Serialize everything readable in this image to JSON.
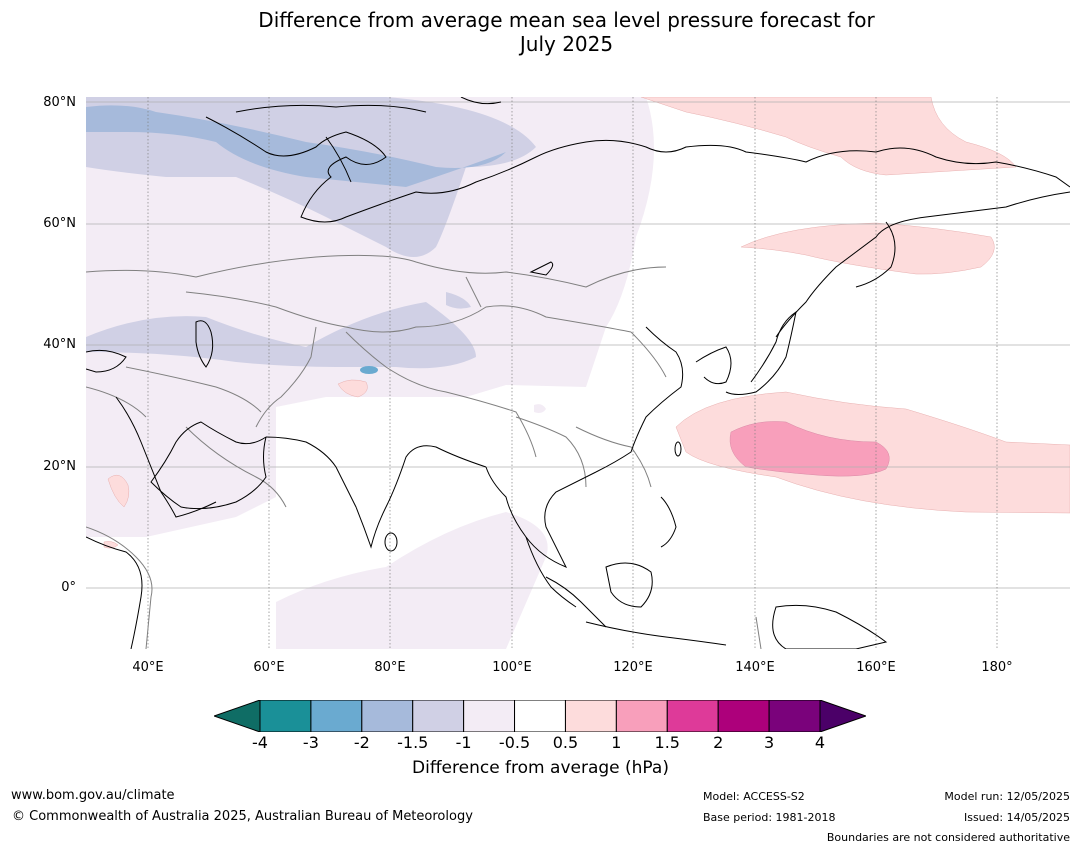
{
  "title_line1": "Difference from average mean sea level pressure forecast for",
  "title_line2": "July 2025",
  "map": {
    "lat_labels": [
      "80°N",
      "60°N",
      "40°N",
      "20°N",
      "0°"
    ],
    "lon_labels": [
      "40°E",
      "60°E",
      "80°E",
      "100°E",
      "120°E",
      "140°E",
      "160°E",
      "180°"
    ],
    "colors": {
      "land_outline": "#000000",
      "borders": "#808080",
      "gridline": "#b0b0b0"
    }
  },
  "colorbar": {
    "ticks": [
      "-4",
      "-3",
      "-2",
      "-1.5",
      "-1",
      "-0.5",
      "0.5",
      "1",
      "1.5",
      "2",
      "3",
      "4"
    ],
    "colors": [
      "#0f6d65",
      "#1a9098",
      "#6aaad0",
      "#a6badb",
      "#d0d0e5",
      "#f3ecf5",
      "#ffffff",
      "#fddcdc",
      "#f89fbb",
      "#de3a99",
      "#ad007b",
      "#7a027b",
      "#4b0068"
    ],
    "label": "Difference from average (hPa)"
  },
  "footer": {
    "website": "www.bom.gov.au/climate",
    "copyright": "© Commonwealth of Australia 2025, Australian Bureau of Meteorology",
    "model": "Model: ACCESS-S2",
    "base_period": "Base period: 1981-2018",
    "model_run": "Model run: 12/05/2025",
    "issued": "Issued: 14/05/2025",
    "disclaimer": "Boundaries are not considered authoritative"
  }
}
